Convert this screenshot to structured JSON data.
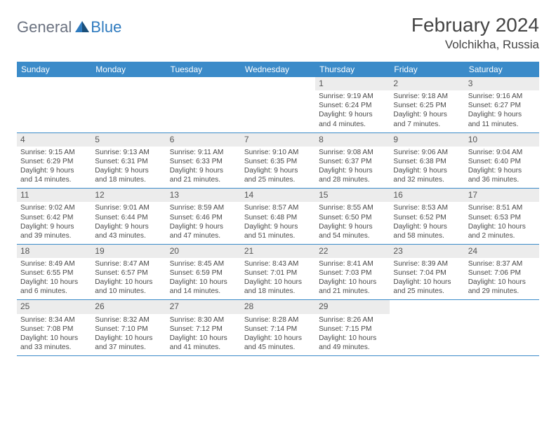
{
  "logo": {
    "general": "General",
    "blue": "Blue"
  },
  "title": "February 2024",
  "location": "Volchikha, Russia",
  "weekdays": [
    "Sunday",
    "Monday",
    "Tuesday",
    "Wednesday",
    "Thursday",
    "Friday",
    "Saturday"
  ],
  "style": {
    "header_bg": "#3b8bc9",
    "header_text": "#ffffff",
    "daynum_bg": "#ececec",
    "border_color": "#3b8bc9",
    "text_color": "#4a4a4a",
    "logo_gray": "#6b7280",
    "logo_blue": "#2f7bbf"
  },
  "weeks": [
    [
      {
        "n": "",
        "lines": []
      },
      {
        "n": "",
        "lines": []
      },
      {
        "n": "",
        "lines": []
      },
      {
        "n": "",
        "lines": []
      },
      {
        "n": "1",
        "lines": [
          "Sunrise: 9:19 AM",
          "Sunset: 6:24 PM",
          "Daylight: 9 hours",
          "and 4 minutes."
        ]
      },
      {
        "n": "2",
        "lines": [
          "Sunrise: 9:18 AM",
          "Sunset: 6:25 PM",
          "Daylight: 9 hours",
          "and 7 minutes."
        ]
      },
      {
        "n": "3",
        "lines": [
          "Sunrise: 9:16 AM",
          "Sunset: 6:27 PM",
          "Daylight: 9 hours",
          "and 11 minutes."
        ]
      }
    ],
    [
      {
        "n": "4",
        "lines": [
          "Sunrise: 9:15 AM",
          "Sunset: 6:29 PM",
          "Daylight: 9 hours",
          "and 14 minutes."
        ]
      },
      {
        "n": "5",
        "lines": [
          "Sunrise: 9:13 AM",
          "Sunset: 6:31 PM",
          "Daylight: 9 hours",
          "and 18 minutes."
        ]
      },
      {
        "n": "6",
        "lines": [
          "Sunrise: 9:11 AM",
          "Sunset: 6:33 PM",
          "Daylight: 9 hours",
          "and 21 minutes."
        ]
      },
      {
        "n": "7",
        "lines": [
          "Sunrise: 9:10 AM",
          "Sunset: 6:35 PM",
          "Daylight: 9 hours",
          "and 25 minutes."
        ]
      },
      {
        "n": "8",
        "lines": [
          "Sunrise: 9:08 AM",
          "Sunset: 6:37 PM",
          "Daylight: 9 hours",
          "and 28 minutes."
        ]
      },
      {
        "n": "9",
        "lines": [
          "Sunrise: 9:06 AM",
          "Sunset: 6:38 PM",
          "Daylight: 9 hours",
          "and 32 minutes."
        ]
      },
      {
        "n": "10",
        "lines": [
          "Sunrise: 9:04 AM",
          "Sunset: 6:40 PM",
          "Daylight: 9 hours",
          "and 36 minutes."
        ]
      }
    ],
    [
      {
        "n": "11",
        "lines": [
          "Sunrise: 9:02 AM",
          "Sunset: 6:42 PM",
          "Daylight: 9 hours",
          "and 39 minutes."
        ]
      },
      {
        "n": "12",
        "lines": [
          "Sunrise: 9:01 AM",
          "Sunset: 6:44 PM",
          "Daylight: 9 hours",
          "and 43 minutes."
        ]
      },
      {
        "n": "13",
        "lines": [
          "Sunrise: 8:59 AM",
          "Sunset: 6:46 PM",
          "Daylight: 9 hours",
          "and 47 minutes."
        ]
      },
      {
        "n": "14",
        "lines": [
          "Sunrise: 8:57 AM",
          "Sunset: 6:48 PM",
          "Daylight: 9 hours",
          "and 51 minutes."
        ]
      },
      {
        "n": "15",
        "lines": [
          "Sunrise: 8:55 AM",
          "Sunset: 6:50 PM",
          "Daylight: 9 hours",
          "and 54 minutes."
        ]
      },
      {
        "n": "16",
        "lines": [
          "Sunrise: 8:53 AM",
          "Sunset: 6:52 PM",
          "Daylight: 9 hours",
          "and 58 minutes."
        ]
      },
      {
        "n": "17",
        "lines": [
          "Sunrise: 8:51 AM",
          "Sunset: 6:53 PM",
          "Daylight: 10 hours",
          "and 2 minutes."
        ]
      }
    ],
    [
      {
        "n": "18",
        "lines": [
          "Sunrise: 8:49 AM",
          "Sunset: 6:55 PM",
          "Daylight: 10 hours",
          "and 6 minutes."
        ]
      },
      {
        "n": "19",
        "lines": [
          "Sunrise: 8:47 AM",
          "Sunset: 6:57 PM",
          "Daylight: 10 hours",
          "and 10 minutes."
        ]
      },
      {
        "n": "20",
        "lines": [
          "Sunrise: 8:45 AM",
          "Sunset: 6:59 PM",
          "Daylight: 10 hours",
          "and 14 minutes."
        ]
      },
      {
        "n": "21",
        "lines": [
          "Sunrise: 8:43 AM",
          "Sunset: 7:01 PM",
          "Daylight: 10 hours",
          "and 18 minutes."
        ]
      },
      {
        "n": "22",
        "lines": [
          "Sunrise: 8:41 AM",
          "Sunset: 7:03 PM",
          "Daylight: 10 hours",
          "and 21 minutes."
        ]
      },
      {
        "n": "23",
        "lines": [
          "Sunrise: 8:39 AM",
          "Sunset: 7:04 PM",
          "Daylight: 10 hours",
          "and 25 minutes."
        ]
      },
      {
        "n": "24",
        "lines": [
          "Sunrise: 8:37 AM",
          "Sunset: 7:06 PM",
          "Daylight: 10 hours",
          "and 29 minutes."
        ]
      }
    ],
    [
      {
        "n": "25",
        "lines": [
          "Sunrise: 8:34 AM",
          "Sunset: 7:08 PM",
          "Daylight: 10 hours",
          "and 33 minutes."
        ]
      },
      {
        "n": "26",
        "lines": [
          "Sunrise: 8:32 AM",
          "Sunset: 7:10 PM",
          "Daylight: 10 hours",
          "and 37 minutes."
        ]
      },
      {
        "n": "27",
        "lines": [
          "Sunrise: 8:30 AM",
          "Sunset: 7:12 PM",
          "Daylight: 10 hours",
          "and 41 minutes."
        ]
      },
      {
        "n": "28",
        "lines": [
          "Sunrise: 8:28 AM",
          "Sunset: 7:14 PM",
          "Daylight: 10 hours",
          "and 45 minutes."
        ]
      },
      {
        "n": "29",
        "lines": [
          "Sunrise: 8:26 AM",
          "Sunset: 7:15 PM",
          "Daylight: 10 hours",
          "and 49 minutes."
        ]
      },
      {
        "n": "",
        "lines": []
      },
      {
        "n": "",
        "lines": []
      }
    ]
  ]
}
